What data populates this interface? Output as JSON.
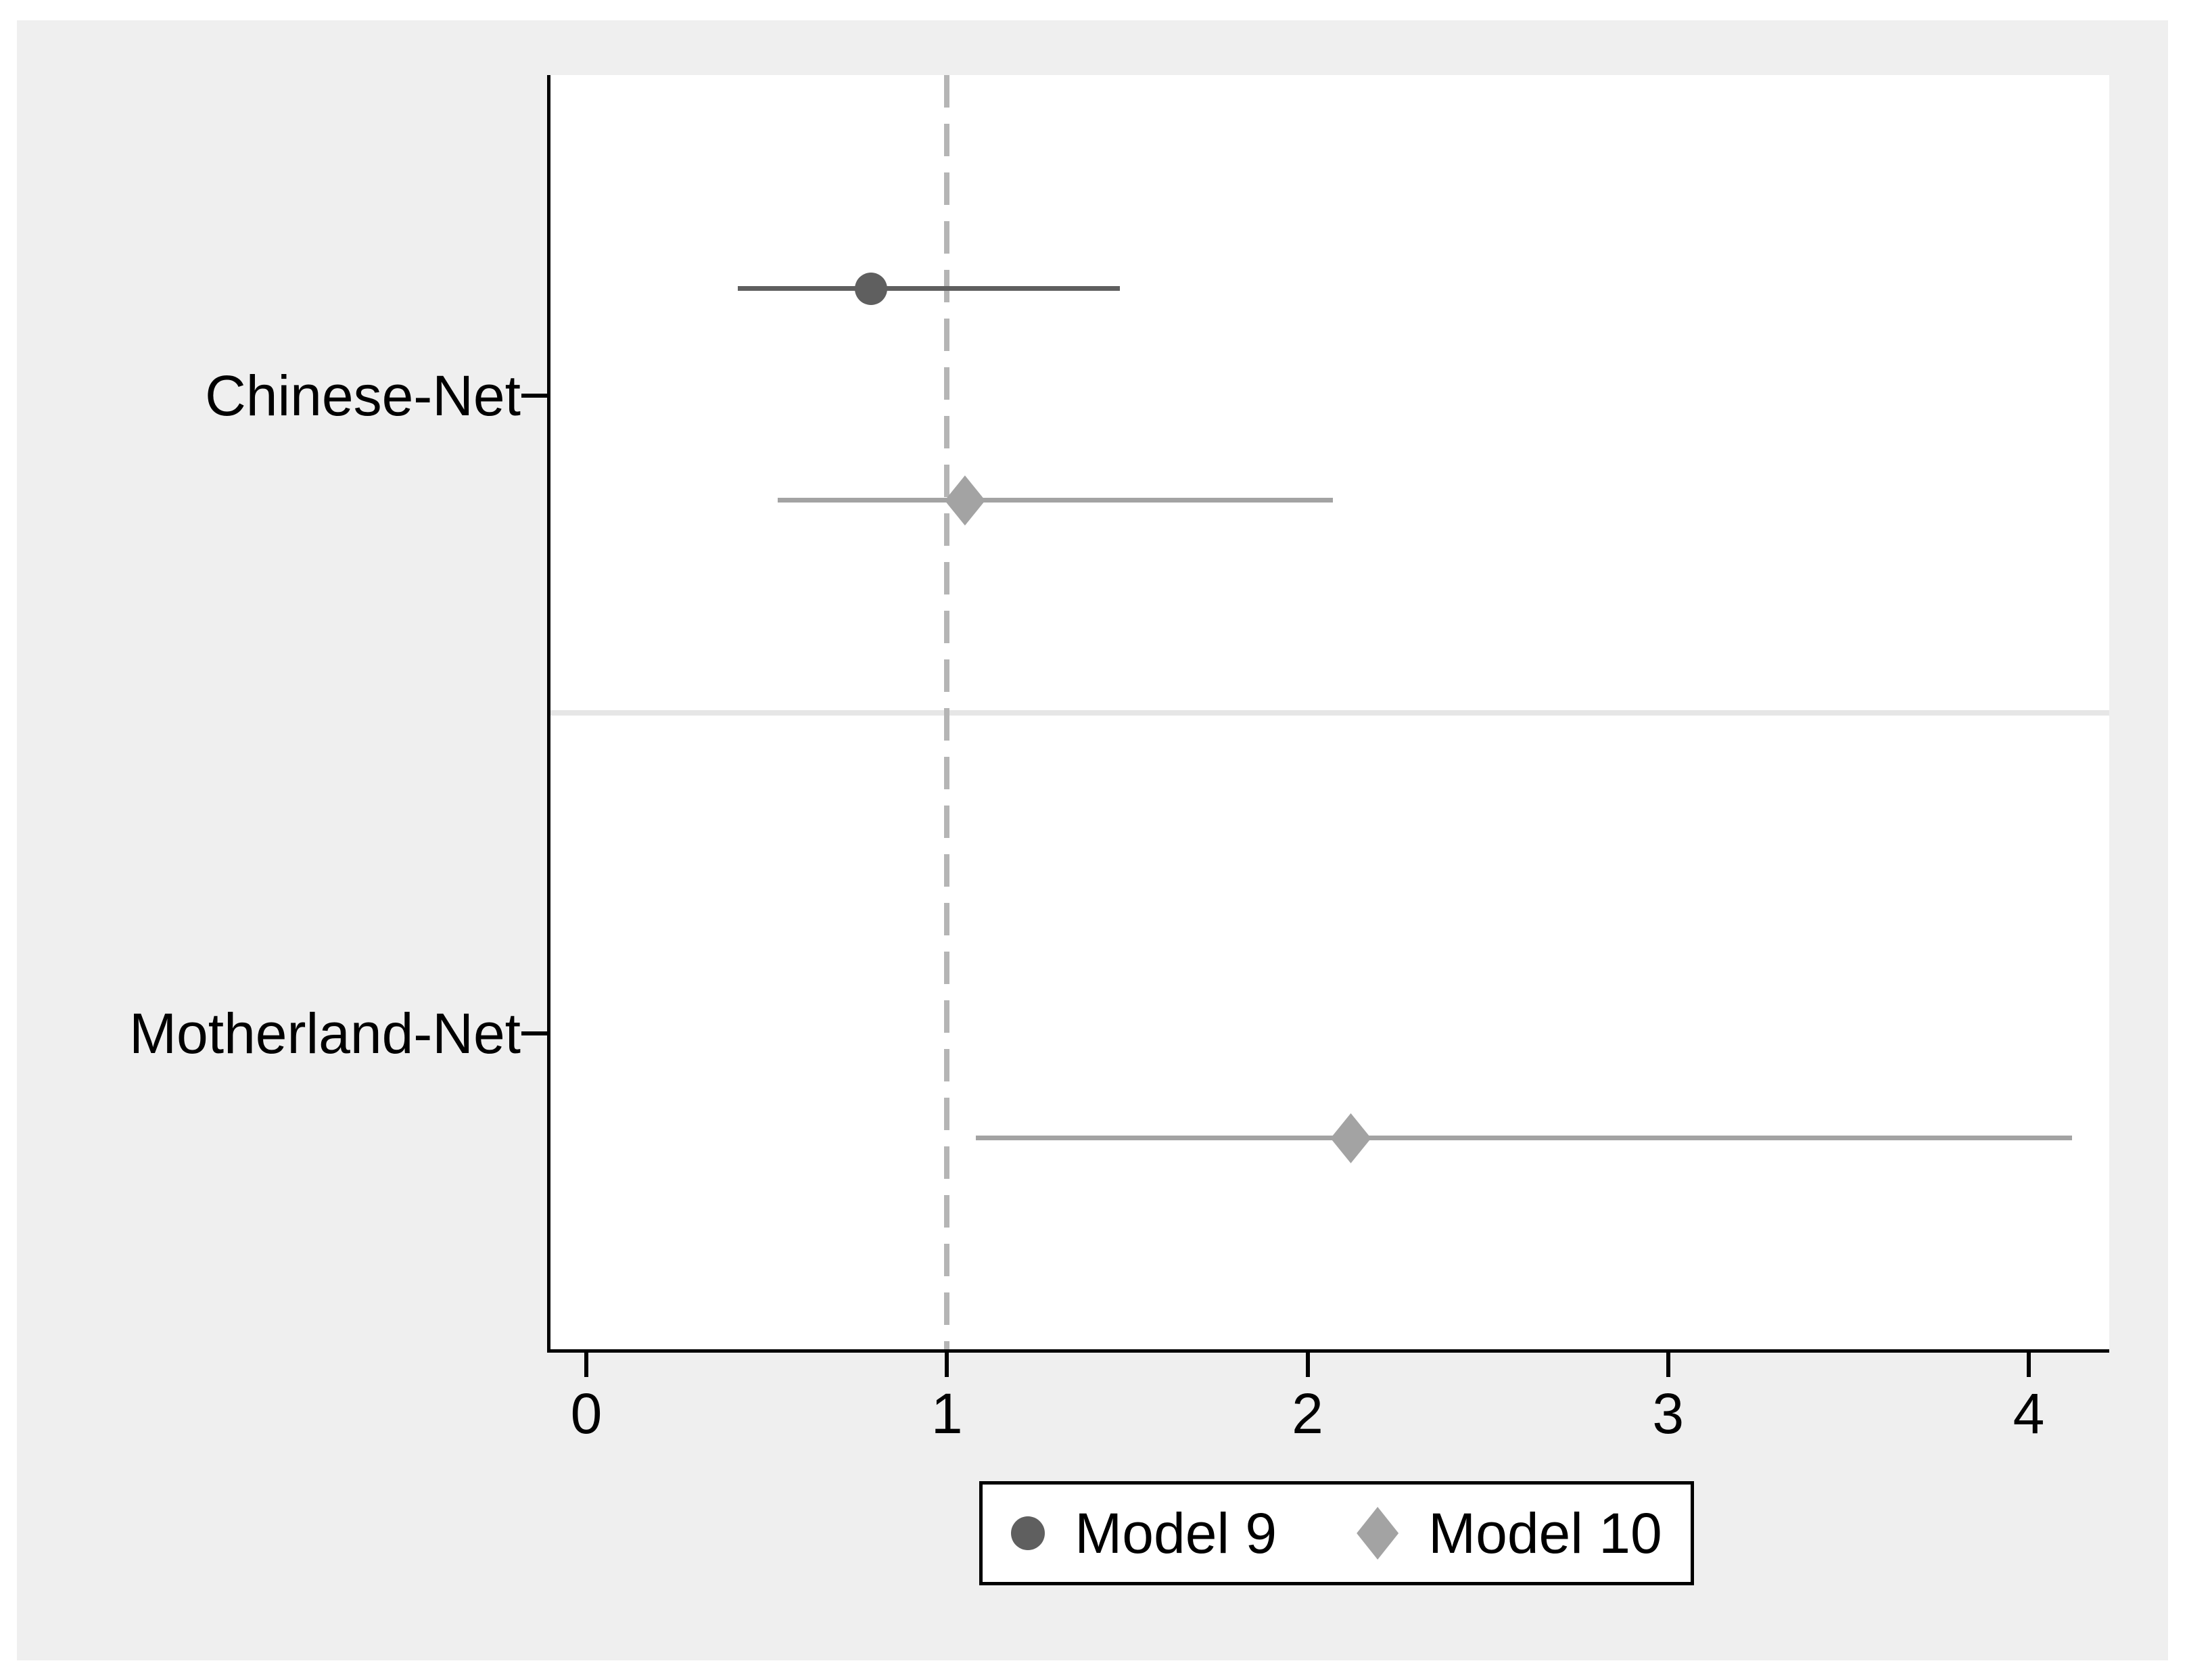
{
  "figure": {
    "background_color": "#efefef",
    "plot_background_color": "#ffffff",
    "axis_color": "#000000",
    "text_color": "#000000"
  },
  "chart_data": {
    "type": "scatter",
    "subtype": "forest-plot-horizontal-ci",
    "categories": [
      "Chinese-Net",
      "Motherland-Net"
    ],
    "x_axis": {
      "ticks": [
        "0",
        "1",
        "2",
        "3",
        "4"
      ],
      "tick_values": [
        0,
        1,
        2,
        3,
        4
      ],
      "range": [
        -0.1,
        4.22
      ],
      "grid": false
    },
    "reference_line": {
      "x": 1,
      "style": "dashed",
      "color": "#b5b5b5"
    },
    "separator_color": "#e6e6e6",
    "series": [
      {
        "name": "Model 9",
        "marker": "circle",
        "color": "#5f5f5f",
        "points": [
          {
            "category": "Chinese-Net",
            "estimate": 0.79,
            "ci_low": 0.42,
            "ci_high": 1.48
          }
        ]
      },
      {
        "name": "Model 10",
        "marker": "diamond",
        "color": "#a3a3a3",
        "points": [
          {
            "category": "Chinese-Net",
            "estimate": 1.05,
            "ci_low": 0.53,
            "ci_high": 2.07
          },
          {
            "category": "Motherland-Net",
            "estimate": 2.12,
            "ci_low": 1.08,
            "ci_high": 4.12
          }
        ]
      }
    ],
    "legend": {
      "position": "bottom-center",
      "entries": [
        "Model 9",
        "Model 10"
      ]
    }
  }
}
